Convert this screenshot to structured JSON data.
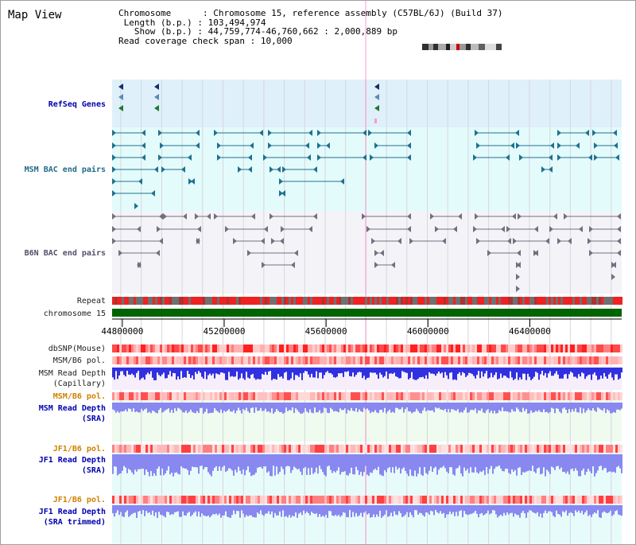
{
  "app": {
    "title": "Map View"
  },
  "info": {
    "chromosome_label": "Chromosome",
    "chromosome_value": "Chromosome 15, reference assembly (C57BL/6J) (Build 37)",
    "length_label": "Length (b.p.)",
    "length_value": "103,494,974",
    "show_label": "Show (b.p.)",
    "show_value": "44,759,774-46,760,662 : 2,000,889 bp",
    "coverage_label": "Read coverage check span",
    "coverage_value": "10,000"
  },
  "tracks": {
    "refseq": "RefSeq Genes",
    "msm_bac": "MSM BAC end pairs",
    "b6n_bac": "B6N BAC end pairs",
    "repeat": "Repeat",
    "chromosome": "chromosome 15",
    "dbsnp": "dbSNP(Mouse)",
    "msm_b6_pol_1": "MSM/B6 pol.",
    "msm_read_depth_cap_1": "MSM Read Depth",
    "msm_read_depth_cap_2": "(Capillary)",
    "msm_b6_pol_2": "MSM/B6 pol.",
    "msm_read_depth_sra_1": "MSM Read Depth",
    "msm_read_depth_sra_2": "(SRA)",
    "jf1_b6_pol_1": "JF1/B6 pol.",
    "jf1_read_depth_sra_1": "JF1 Read Depth",
    "jf1_read_depth_sra_2": "(SRA)",
    "jf1_b6_pol_2": "JF1/B6 pol.",
    "jf1_read_depth_trim_1": "JF1 Read Depth",
    "jf1_read_depth_trim_2": "(SRA trimmed)"
  },
  "axis": {
    "start_bp": 44759774,
    "end_bp": 46760662,
    "ticks": [
      {
        "bp": 44800000,
        "label": "44800000"
      },
      {
        "bp": 45200000,
        "label": "45200000"
      },
      {
        "bp": 45600000,
        "label": "45600000"
      },
      {
        "bp": 46000000,
        "label": "46000000"
      },
      {
        "bp": 46400000,
        "label": "46400000"
      }
    ]
  },
  "colors": {
    "refseq_bg": "#dff0fa",
    "msm_bac_bg": "#e4fbfb",
    "b6n_bac_bg": "#f4f4f8",
    "msm_feature": "#207090",
    "b6n_feature": "#707080",
    "chromosome_bar": "#006400",
    "repeat_red": "#ee2222",
    "repeat_gray": "#707070",
    "depth_blue": "#3030e0",
    "depth_light_blue": "#8888f0",
    "snp_red": "#ff3030",
    "highlight_line": "#ff99cc"
  }
}
